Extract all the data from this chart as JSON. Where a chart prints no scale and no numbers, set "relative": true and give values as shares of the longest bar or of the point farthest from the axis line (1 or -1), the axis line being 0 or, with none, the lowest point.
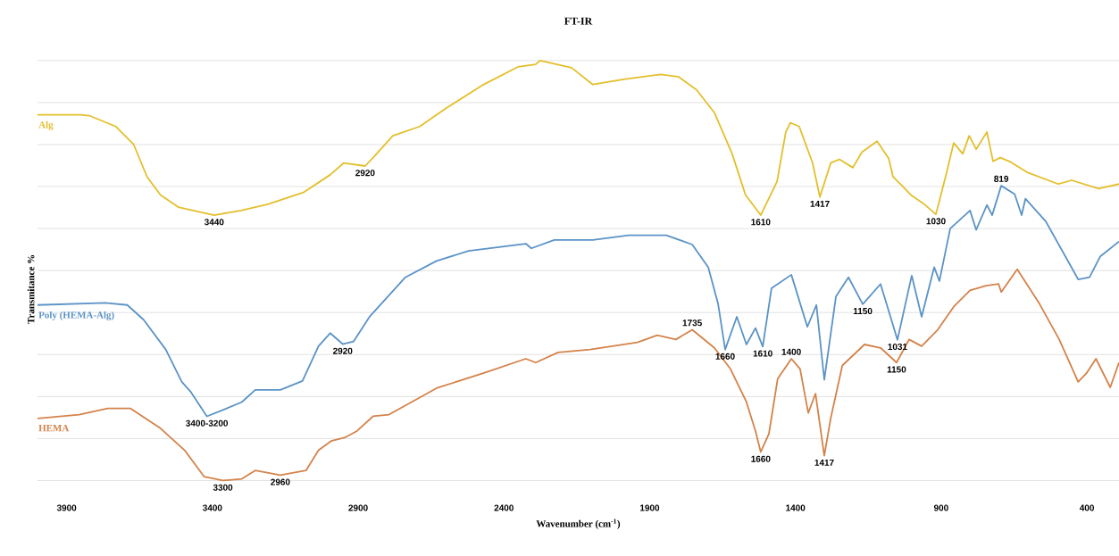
{
  "chart_data": {
    "type": "line",
    "title": "FT-IR",
    "xlabel": "Wavenumber (cm$^{-1}$)",
    "ylabel": "Transmitance %",
    "relative": true,
    "grid": "y",
    "legend": false,
    "xlim": [
      4000,
      290
    ],
    "xticks": [
      3900,
      3400,
      2900,
      2400,
      1900,
      1400,
      900,
      400
    ],
    "series": [
      {
        "name": "Alg",
        "color": "#e3bf2c",
        "x": [
          4000,
          3854,
          3823,
          3731,
          3670,
          3624,
          3578,
          3517,
          3394,
          3302,
          3210,
          3088,
          2996,
          2950,
          2876,
          2843,
          2781,
          2689,
          2597,
          2475,
          2352,
          2291,
          2276,
          2168,
          2095,
          1984,
          1862,
          1800,
          1739,
          1678,
          1617,
          1571,
          1519,
          1463,
          1433,
          1417,
          1387,
          1341,
          1316,
          1279,
          1249,
          1203,
          1172,
          1120,
          1080,
          1065,
          1034,
          1004,
          958,
          918,
          881,
          857,
          826,
          804,
          780,
          743,
          722,
          697,
          666,
          605,
          498,
          452,
          360,
          290
        ],
        "values": [
          0.871,
          0.871,
          0.869,
          0.843,
          0.8,
          0.723,
          0.68,
          0.651,
          0.632,
          0.643,
          0.658,
          0.686,
          0.728,
          0.756,
          0.749,
          0.773,
          0.821,
          0.843,
          0.887,
          0.941,
          0.985,
          0.991,
          1,
          0.983,
          0.943,
          0.956,
          0.967,
          0.961,
          0.93,
          0.876,
          0.778,
          0.68,
          0.632,
          0.712,
          0.83,
          0.852,
          0.843,
          0.756,
          0.675,
          0.756,
          0.765,
          0.745,
          0.782,
          0.808,
          0.767,
          0.723,
          0.702,
          0.68,
          0.658,
          0.634,
          0.734,
          0.804,
          0.778,
          0.821,
          0.789,
          0.83,
          0.76,
          0.769,
          0.76,
          0.734,
          0.706,
          0.715,
          0.695,
          0.706
        ]
      },
      {
        "name": "Poly (HEMA-Alg)",
        "color": "#5b93c6",
        "x": [
          4000,
          3768,
          3692,
          3636,
          3560,
          3505,
          3474,
          3419,
          3364,
          3299,
          3253,
          3167,
          3091,
          3036,
          2996,
          2953,
          2916,
          2861,
          2849,
          2738,
          2631,
          2521,
          2325,
          2306,
          2227,
          2095,
          1972,
          1843,
          1754,
          1699,
          1665,
          1641,
          1601,
          1568,
          1537,
          1512,
          1482,
          1414,
          1359,
          1328,
          1301,
          1261,
          1218,
          1169,
          1108,
          1050,
          1001,
          967,
          924,
          906,
          869,
          801,
          780,
          743,
          725,
          694,
          648,
          624,
          611,
          541,
          430,
          391,
          354,
          290
        ],
        "values": [
          0.418,
          0.423,
          0.418,
          0.383,
          0.312,
          0.235,
          0.211,
          0.153,
          0.168,
          0.187,
          0.216,
          0.216,
          0.237,
          0.32,
          0.351,
          0.325,
          0.331,
          0.39,
          0.399,
          0.484,
          0.523,
          0.547,
          0.564,
          0.553,
          0.573,
          0.573,
          0.584,
          0.584,
          0.562,
          0.508,
          0.42,
          0.312,
          0.39,
          0.324,
          0.363,
          0.319,
          0.458,
          0.49,
          0.366,
          0.418,
          0.24,
          0.438,
          0.484,
          0.42,
          0.468,
          0.335,
          0.488,
          0.39,
          0.508,
          0.475,
          0.6,
          0.643,
          0.597,
          0.656,
          0.632,
          0.702,
          0.682,
          0.632,
          0.671,
          0.617,
          0.479,
          0.484,
          0.534,
          0.569
        ]
      },
      {
        "name": "HEMA",
        "color": "#d3834a",
        "x": [
          4000,
          3857,
          3759,
          3682,
          3581,
          3495,
          3428,
          3364,
          3299,
          3253,
          3167,
          3079,
          3036,
          2993,
          2947,
          2904,
          2849,
          2794,
          2631,
          2466,
          2325,
          2291,
          2214,
          2104,
          1942,
          1874,
          1810,
          1754,
          1678,
          1623,
          1568,
          1537,
          1519,
          1491,
          1461,
          1414,
          1384,
          1356,
          1331,
          1301,
          1279,
          1239,
          1163,
          1108,
          1053,
          1010,
          967,
          912,
          857,
          801,
          746,
          703,
          694,
          639,
          562,
          495,
          430,
          402,
          369,
          320,
          290
        ],
        "values": [
          0.148,
          0.157,
          0.172,
          0.172,
          0.126,
          0.072,
          0.009,
          0,
          0.004,
          0.024,
          0.013,
          0.024,
          0.072,
          0.094,
          0.102,
          0.118,
          0.153,
          0.157,
          0.22,
          0.257,
          0.29,
          0.281,
          0.305,
          0.312,
          0.329,
          0.346,
          0.336,
          0.359,
          0.316,
          0.266,
          0.187,
          0.118,
          0.068,
          0.111,
          0.242,
          0.29,
          0.266,
          0.161,
          0.207,
          0.059,
          0.148,
          0.274,
          0.324,
          0.316,
          0.281,
          0.336,
          0.32,
          0.359,
          0.414,
          0.453,
          0.464,
          0.468,
          0.449,
          0.503,
          0.42,
          0.336,
          0.235,
          0.255,
          0.29,
          0.222,
          0.281
        ]
      }
    ],
    "annotations": [
      {
        "text": "3440",
        "x": 3394,
        "y": 0.632
      },
      {
        "text": "2920",
        "x": 2876,
        "y": 0.749
      },
      {
        "text": "1610",
        "x": 1519,
        "y": 0.632
      },
      {
        "text": "1417",
        "x": 1316,
        "y": 0.675
      },
      {
        "text": "1030",
        "x": 918,
        "y": 0.634
      },
      {
        "text": "819",
        "x": 694,
        "y": 0.702
      },
      {
        "text": "3400-3200",
        "x": 3419,
        "y": 0.153
      },
      {
        "text": "2920",
        "x": 2953,
        "y": 0.325
      },
      {
        "text": "1735",
        "x": 1754,
        "y": 0.359
      },
      {
        "text": "1660",
        "x": 1641,
        "y": 0.312
      },
      {
        "text": "1610",
        "x": 1512,
        "y": 0.319
      },
      {
        "text": "1400",
        "x": 1414,
        "y": 0.29
      },
      {
        "text": "1150",
        "x": 1169,
        "y": 0.42
      },
      {
        "text": "1031",
        "x": 1050,
        "y": 0.335
      },
      {
        "text": "3300",
        "x": 3364,
        "y": 0
      },
      {
        "text": "2960",
        "x": 3167,
        "y": 0.013
      },
      {
        "text": "1660",
        "x": 1519,
        "y": 0.068
      },
      {
        "text": "1417",
        "x": 1301,
        "y": 0.059
      },
      {
        "text": "1150",
        "x": 1053,
        "y": 0.281
      }
    ]
  }
}
